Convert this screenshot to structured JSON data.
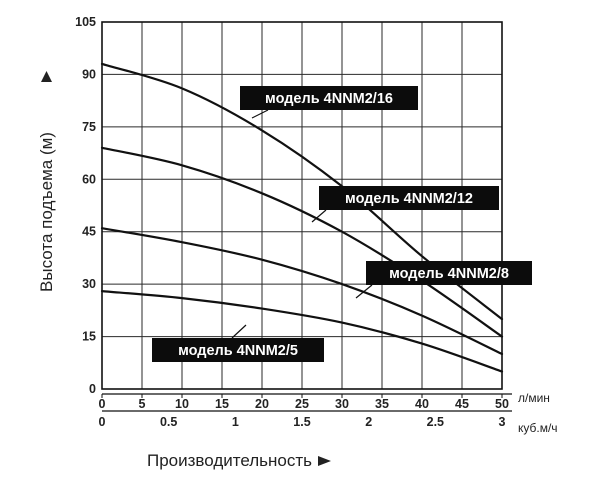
{
  "chart_data": {
    "type": "line",
    "ylabel": "Высота подъема (м)",
    "xlabel": "Производительность",
    "y_ticks": [
      0,
      15,
      30,
      45,
      60,
      75,
      90,
      105
    ],
    "ylim": [
      0,
      105
    ],
    "x_primary": {
      "unit": "л/мин",
      "ticks": [
        0,
        5,
        10,
        15,
        20,
        25,
        30,
        35,
        40,
        45,
        50
      ],
      "range": [
        0,
        50
      ]
    },
    "x_secondary": {
      "unit": "куб.м/ч",
      "ticks": [
        "0",
        "0.5",
        "1",
        "1.5",
        "2",
        "2.5",
        "3"
      ],
      "values": [
        0,
        0.5,
        1,
        1.5,
        2,
        2.5,
        3
      ]
    },
    "grid": true,
    "series": [
      {
        "name": "модель 4NNM2/16",
        "x": [
          0,
          10,
          20,
          30,
          40,
          50
        ],
        "y": [
          93,
          86,
          74,
          58,
          38,
          20
        ]
      },
      {
        "name": "модель 4NNM2/12",
        "x": [
          0,
          10,
          20,
          30,
          40,
          50
        ],
        "y": [
          69,
          64,
          56,
          45,
          31,
          15
        ]
      },
      {
        "name": "модель 4NNM2/8",
        "x": [
          0,
          10,
          20,
          30,
          40,
          50
        ],
        "y": [
          46,
          42,
          37,
          30,
          21,
          10
        ]
      },
      {
        "name": "модель 4NNM2/5",
        "x": [
          0,
          10,
          20,
          30,
          40,
          50
        ],
        "y": [
          28,
          26,
          23,
          19,
          13,
          5
        ]
      }
    ]
  }
}
